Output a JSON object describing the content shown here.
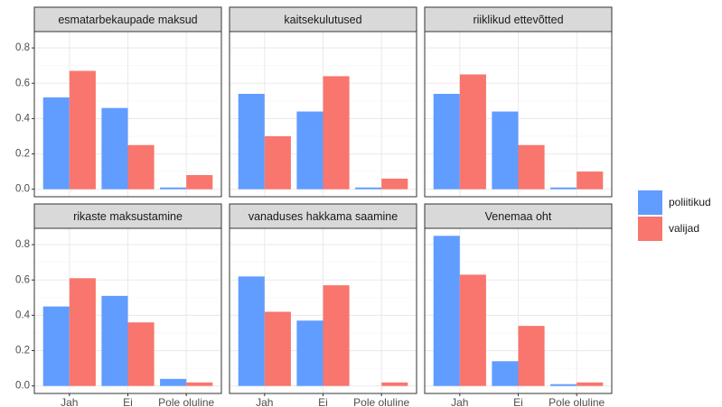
{
  "chart_data": [
    {
      "type": "bar",
      "title": "esmatarbekaupade maksud",
      "categories": [
        "Jah",
        "Ei",
        "Pole oluline"
      ],
      "series": [
        {
          "name": "poliitikud",
          "color": "#619cff",
          "values": [
            0.52,
            0.46,
            0.01
          ]
        },
        {
          "name": "valijad",
          "color": "#f8766d",
          "values": [
            0.67,
            0.25,
            0.08
          ]
        }
      ],
      "ylim": [
        -0.0425,
        0.8925
      ],
      "yticks": [
        {
          "value": 0,
          "label": "0.0"
        },
        0.2,
        0.4,
        0.6,
        0.8
      ],
      "grid": true
    },
    {
      "type": "bar",
      "title": "kaitsekulutused",
      "categories": [
        "Jah",
        "Ei",
        "Pole oluline"
      ],
      "series": [
        {
          "name": "poliitikud",
          "color": "#619cff",
          "values": [
            0.54,
            0.44,
            0.01
          ]
        },
        {
          "name": "valijad",
          "color": "#f8766d",
          "values": [
            0.3,
            0.64,
            0.06
          ]
        }
      ],
      "ylim": [
        -0.0425,
        0.8925
      ],
      "yticks": [
        {
          "value": 0,
          "label": "0.0"
        },
        0.2,
        0.4,
        0.6,
        0.8
      ],
      "grid": true
    },
    {
      "type": "bar",
      "title": "riiklikud ettevõtted",
      "categories": [
        "Jah",
        "Ei",
        "Pole oluline"
      ],
      "series": [
        {
          "name": "poliitikud",
          "color": "#619cff",
          "values": [
            0.54,
            0.44,
            0.01
          ]
        },
        {
          "name": "valijad",
          "color": "#f8766d",
          "values": [
            0.65,
            0.25,
            0.1
          ]
        }
      ],
      "ylim": [
        -0.0425,
        0.8925
      ],
      "yticks": [
        {
          "value": 0,
          "label": "0.0"
        },
        0.2,
        0.4,
        0.6,
        0.8
      ],
      "grid": true
    },
    {
      "type": "bar",
      "title": "rikaste maksustamine",
      "categories": [
        "Jah",
        "Ei",
        "Pole oluline"
      ],
      "series": [
        {
          "name": "poliitikud",
          "color": "#619cff",
          "values": [
            0.45,
            0.51,
            0.04
          ]
        },
        {
          "name": "valijad",
          "color": "#f8766d",
          "values": [
            0.61,
            0.36,
            0.02
          ]
        }
      ],
      "ylim": [
        -0.0425,
        0.8925
      ],
      "yticks": [
        {
          "value": 0,
          "label": "0.0"
        },
        0.2,
        0.4,
        0.6,
        0.8
      ],
      "grid": true
    },
    {
      "type": "bar",
      "title": "vanaduses hakkama saamine",
      "categories": [
        "Jah",
        "Ei",
        "Pole oluline"
      ],
      "series": [
        {
          "name": "poliitikud",
          "color": "#619cff",
          "values": [
            0.62,
            0.37,
            0.0
          ]
        },
        {
          "name": "valijad",
          "color": "#f8766d",
          "values": [
            0.42,
            0.57,
            0.02
          ]
        }
      ],
      "ylim": [
        -0.0425,
        0.8925
      ],
      "yticks": [
        {
          "value": 0,
          "label": "0.0"
        },
        0.2,
        0.4,
        0.6,
        0.8
      ],
      "grid": true
    },
    {
      "type": "bar",
      "title": "Venemaa oht",
      "categories": [
        "Jah",
        "Ei",
        "Pole oluline"
      ],
      "series": [
        {
          "name": "poliitikud",
          "color": "#619cff",
          "values": [
            0.85,
            0.14,
            0.01
          ]
        },
        {
          "name": "valijad",
          "color": "#f8766d",
          "values": [
            0.63,
            0.34,
            0.02
          ]
        }
      ],
      "ylim": [
        -0.0425,
        0.8925
      ],
      "yticks": [
        {
          "value": 0,
          "label": "0.0"
        },
        0.2,
        0.4,
        0.6,
        0.8
      ],
      "grid": true
    }
  ]
}
